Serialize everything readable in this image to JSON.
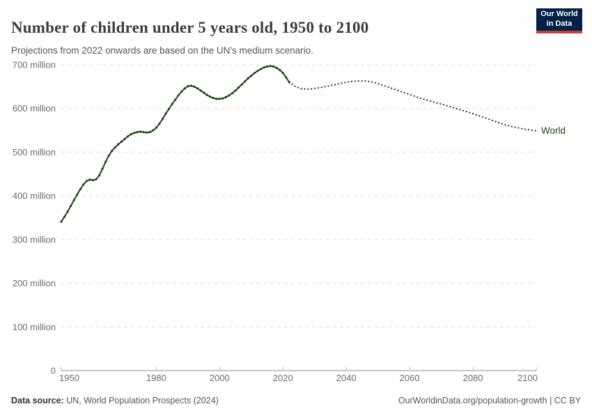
{
  "header": {
    "title": "Number of children under 5 years old, 1950 to 2100",
    "subtitle": "Projections from 2022 onwards are based on the UN's medium scenario.",
    "logo": {
      "line1": "Our World",
      "line2": "in Data"
    }
  },
  "colors": {
    "line": "#18470f",
    "logo_bg": "#002147",
    "logo_bar": "#d13d32"
  },
  "chart_data": {
    "type": "line",
    "title": "Number of children under 5 years old, 1950 to 2100",
    "subtitle": "Projections from 2022 onwards are based on the UN's medium scenario.",
    "entity_label": "World",
    "values_unit": "millions of children under 5",
    "xlim": [
      1950,
      2100
    ],
    "ylim_millions": [
      0,
      700
    ],
    "grid": true,
    "legend_position": "end-of-line",
    "xticks": [
      1950,
      1980,
      2000,
      2020,
      2040,
      2060,
      2080,
      2100
    ],
    "yticks": [
      {
        "value": 0,
        "label": "0"
      },
      {
        "value": 100,
        "label": "100 million"
      },
      {
        "value": 200,
        "label": "200 million"
      },
      {
        "value": 300,
        "label": "300 million"
      },
      {
        "value": 400,
        "label": "400 million"
      },
      {
        "value": 500,
        "label": "500 million"
      },
      {
        "value": 600,
        "label": "600 million"
      },
      {
        "value": 700,
        "label": "700 million"
      }
    ],
    "series": [
      {
        "name": "World (estimates)",
        "style": "solid",
        "markers": true,
        "years": [
          1950,
          1951,
          1952,
          1953,
          1954,
          1955,
          1956,
          1957,
          1958,
          1959,
          1960,
          1961,
          1962,
          1963,
          1964,
          1965,
          1966,
          1967,
          1968,
          1969,
          1970,
          1971,
          1972,
          1973,
          1974,
          1975,
          1976,
          1977,
          1978,
          1979,
          1980,
          1981,
          1982,
          1983,
          1984,
          1985,
          1986,
          1987,
          1988,
          1989,
          1990,
          1991,
          1992,
          1993,
          1994,
          1995,
          1996,
          1997,
          1998,
          1999,
          2000,
          2001,
          2002,
          2003,
          2004,
          2005,
          2006,
          2007,
          2008,
          2009,
          2010,
          2011,
          2012,
          2013,
          2014,
          2015,
          2016,
          2017,
          2018,
          2019,
          2020,
          2021,
          2022
        ],
        "values": [
          341,
          352,
          364,
          377,
          390,
          403,
          415,
          426,
          434,
          437,
          436,
          438,
          447,
          462,
          478,
          492,
          503,
          511,
          518,
          524,
          530,
          536,
          541,
          544,
          546,
          547,
          546,
          545,
          546,
          550,
          556,
          565,
          576,
          588,
          599,
          610,
          620,
          630,
          639,
          646,
          651,
          652,
          650,
          646,
          641,
          636,
          631,
          627,
          624,
          622,
          622,
          623,
          626,
          630,
          635,
          641,
          648,
          655,
          662,
          669,
          675,
          681,
          686,
          690,
          694,
          696,
          697,
          696,
          693,
          688,
          681,
          671,
          660
        ]
      },
      {
        "name": "World (UN medium-scenario projection)",
        "style": "dotted",
        "markers": false,
        "years": [
          2022,
          2024,
          2026,
          2028,
          2030,
          2032,
          2034,
          2036,
          2038,
          2040,
          2042,
          2044,
          2046,
          2048,
          2050,
          2052,
          2054,
          2056,
          2058,
          2060,
          2062,
          2064,
          2066,
          2068,
          2070,
          2072,
          2074,
          2076,
          2078,
          2080,
          2082,
          2084,
          2086,
          2088,
          2090,
          2092,
          2094,
          2096,
          2098,
          2100
        ],
        "values": [
          660,
          650,
          645,
          644,
          646,
          648,
          651,
          654,
          657,
          660,
          662,
          663,
          663,
          661,
          657,
          652,
          647,
          642,
          637,
          632,
          627,
          622,
          618,
          614,
          610,
          606,
          602,
          597,
          593,
          588,
          583,
          578,
          573,
          568,
          563,
          559,
          556,
          553,
          551,
          549
        ]
      }
    ]
  },
  "footer": {
    "source_label": "Data source:",
    "source_text": " UN, World Population Prospects (2024)",
    "credit": "OurWorldinData.org/population-growth | CC BY"
  }
}
